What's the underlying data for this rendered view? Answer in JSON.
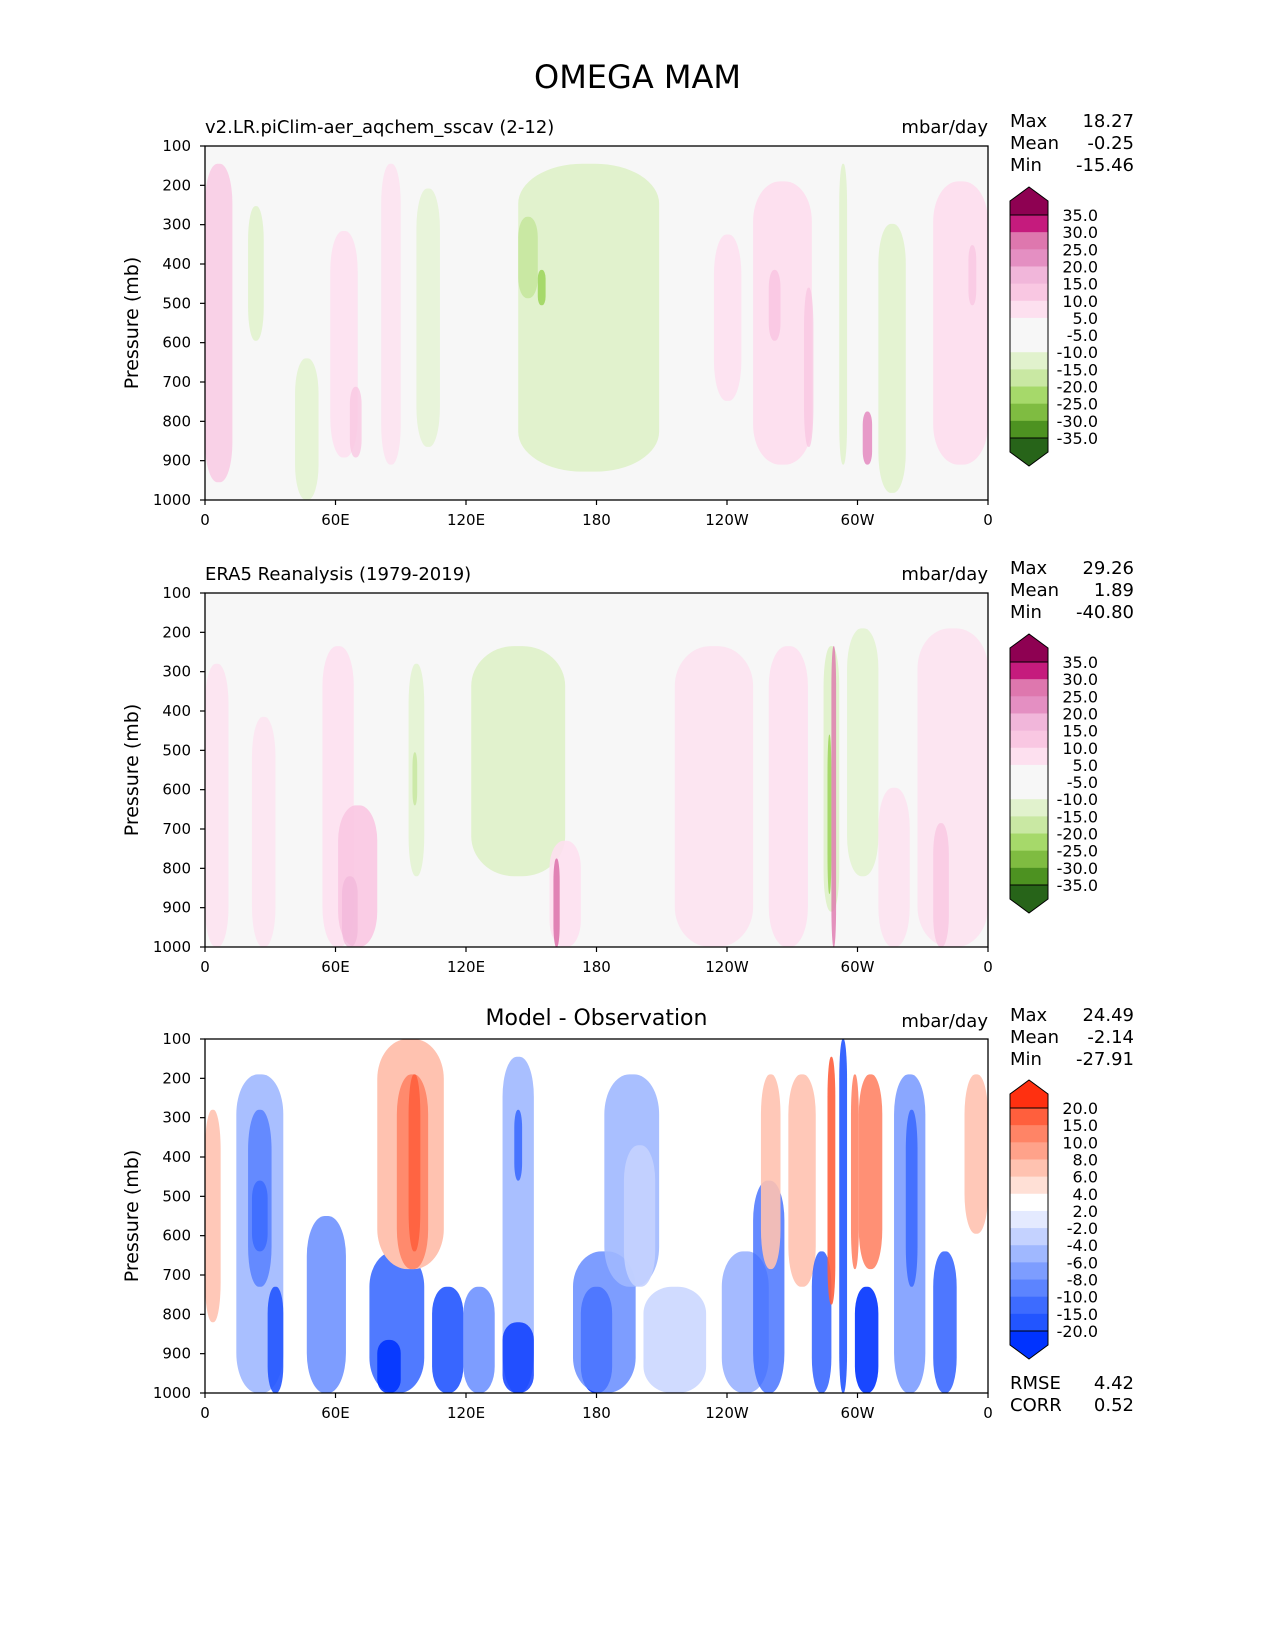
{
  "title": "OMEGA MAM",
  "colors": {
    "magenta_green": [
      "#276419",
      "#4d9221",
      "#7fbc41",
      "#a6d96a",
      "#c9e8a3",
      "#e1f2cd",
      "#f7f7f7",
      "#f7f7f7",
      "#fde0ef",
      "#f9c7e2",
      "#f1b6da",
      "#e48fc2",
      "#de77ae",
      "#c51b7d",
      "#8e0152"
    ],
    "blue_red": [
      "#0033ff",
      "#2255ff",
      "#3d6bff",
      "#5c84ff",
      "#7d9dff",
      "#a0b8ff",
      "#c4d2ff",
      "#e4eaff",
      "#ffffff",
      "#ffe0d6",
      "#ffc2b0",
      "#ffa28a",
      "#ff8466",
      "#ff5f3d",
      "#ff3010"
    ]
  },
  "chart_data": [
    {
      "type": "heatmap",
      "name": "model",
      "title": "v2.LR.piClim-aer_aqchem_sscav (2-12)",
      "units": "mbar/day",
      "ylabel": "Pressure (mb)",
      "xlabel": "",
      "x_ticks": [
        "0",
        "60E",
        "120E",
        "180",
        "120W",
        "60W",
        "0"
      ],
      "y_ticks": [
        "100",
        "200",
        "300",
        "400",
        "500",
        "600",
        "700",
        "800",
        "900",
        "1000"
      ],
      "ylim": [
        1000,
        100
      ],
      "stats": {
        "Max": "18.27",
        "Mean": "-0.25",
        "Min": "-15.46"
      },
      "colorbar": {
        "palette": "magenta_green",
        "labels": [
          "35.0",
          "30.0",
          "25.0",
          "20.0",
          "15.0",
          "10.0",
          "5.0",
          "-5.0",
          "-10.0",
          "-15.0",
          "-20.0",
          "-25.0",
          "-30.0",
          "-35.0"
        ]
      }
    },
    {
      "type": "heatmap",
      "name": "observation",
      "title": "ERA5 Reanalysis (1979-2019)",
      "units": "mbar/day",
      "ylabel": "Pressure (mb)",
      "xlabel": "",
      "x_ticks": [
        "0",
        "60E",
        "120E",
        "180",
        "120W",
        "60W",
        "0"
      ],
      "y_ticks": [
        "100",
        "200",
        "300",
        "400",
        "500",
        "600",
        "700",
        "800",
        "900",
        "1000"
      ],
      "ylim": [
        1000,
        100
      ],
      "stats": {
        "Max": "29.26",
        "Mean": "1.89",
        "Min": "-40.80"
      },
      "colorbar": {
        "palette": "magenta_green",
        "labels": [
          "35.0",
          "30.0",
          "25.0",
          "20.0",
          "15.0",
          "10.0",
          "5.0",
          "-5.0",
          "-10.0",
          "-15.0",
          "-20.0",
          "-25.0",
          "-30.0",
          "-35.0"
        ]
      }
    },
    {
      "type": "heatmap",
      "name": "difference",
      "title": "Model - Observation",
      "units": "mbar/day",
      "ylabel": "Pressure (mb)",
      "xlabel": "",
      "x_ticks": [
        "0",
        "60E",
        "120E",
        "180",
        "120W",
        "60W",
        "0"
      ],
      "y_ticks": [
        "100",
        "200",
        "300",
        "400",
        "500",
        "600",
        "700",
        "800",
        "900",
        "1000"
      ],
      "ylim": [
        1000,
        100
      ],
      "stats": {
        "Max": "24.49",
        "Mean": "-2.14",
        "Min": "-27.91"
      },
      "extra_stats": {
        "RMSE": "4.42",
        "CORR": "0.52"
      },
      "colorbar": {
        "palette": "blue_red",
        "labels": [
          "20.0",
          "15.0",
          "10.0",
          "8.0",
          "6.0",
          "4.0",
          "2.0",
          "-2.0",
          "-4.0",
          "-6.0",
          "-8.0",
          "-10.0",
          "-15.0",
          "-20.0"
        ]
      }
    }
  ]
}
